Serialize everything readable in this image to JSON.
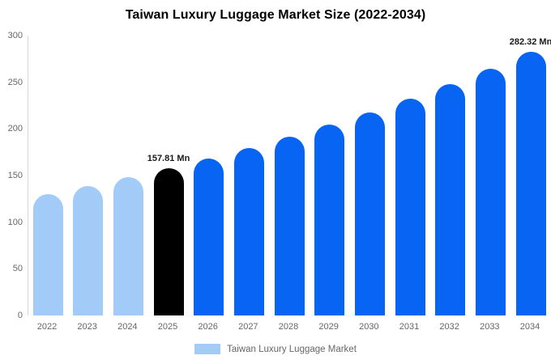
{
  "title": "Taiwan Luxury Luggage Market Size (2022-2034)",
  "legend": {
    "label": "Taiwan Luxury Luggage Market",
    "swatch_color": "#a2ccf7"
  },
  "colors": {
    "historical_bar": "#a2ccf7",
    "base_year_bar": "#000000",
    "forecast_bar": "#0864f2",
    "axis_text": "#666666",
    "annotation_text": "#1a1a1a",
    "axis_line": "#d6d6d6",
    "background": "#ffffff"
  },
  "chart_data": {
    "type": "bar",
    "title": "Taiwan Luxury Luggage Market Size (2022-2034)",
    "xlabel": "",
    "ylabel": "",
    "unit": "Mn",
    "categories": [
      "2022",
      "2023",
      "2024",
      "2025",
      "2026",
      "2027",
      "2028",
      "2029",
      "2030",
      "2031",
      "2032",
      "2033",
      "2034"
    ],
    "values": [
      130.0,
      138.7,
      147.9,
      157.81,
      168.3,
      179.6,
      191.6,
      204.3,
      217.9,
      232.5,
      247.9,
      264.4,
      282.32
    ],
    "bar_colors": [
      "#a2ccf7",
      "#a2ccf7",
      "#a2ccf7",
      "#000000",
      "#0864f2",
      "#0864f2",
      "#0864f2",
      "#0864f2",
      "#0864f2",
      "#0864f2",
      "#0864f2",
      "#0864f2",
      "#0864f2"
    ],
    "annotations": [
      {
        "index": 3,
        "text": "157.81 Mn"
      },
      {
        "index": 12,
        "text": "282.32 Mn"
      }
    ],
    "y_axis": {
      "ticks": [
        0,
        50,
        100,
        150,
        200,
        250,
        300
      ],
      "min": 0,
      "max": 300
    },
    "grid": "off",
    "legend_position": "bottom"
  }
}
